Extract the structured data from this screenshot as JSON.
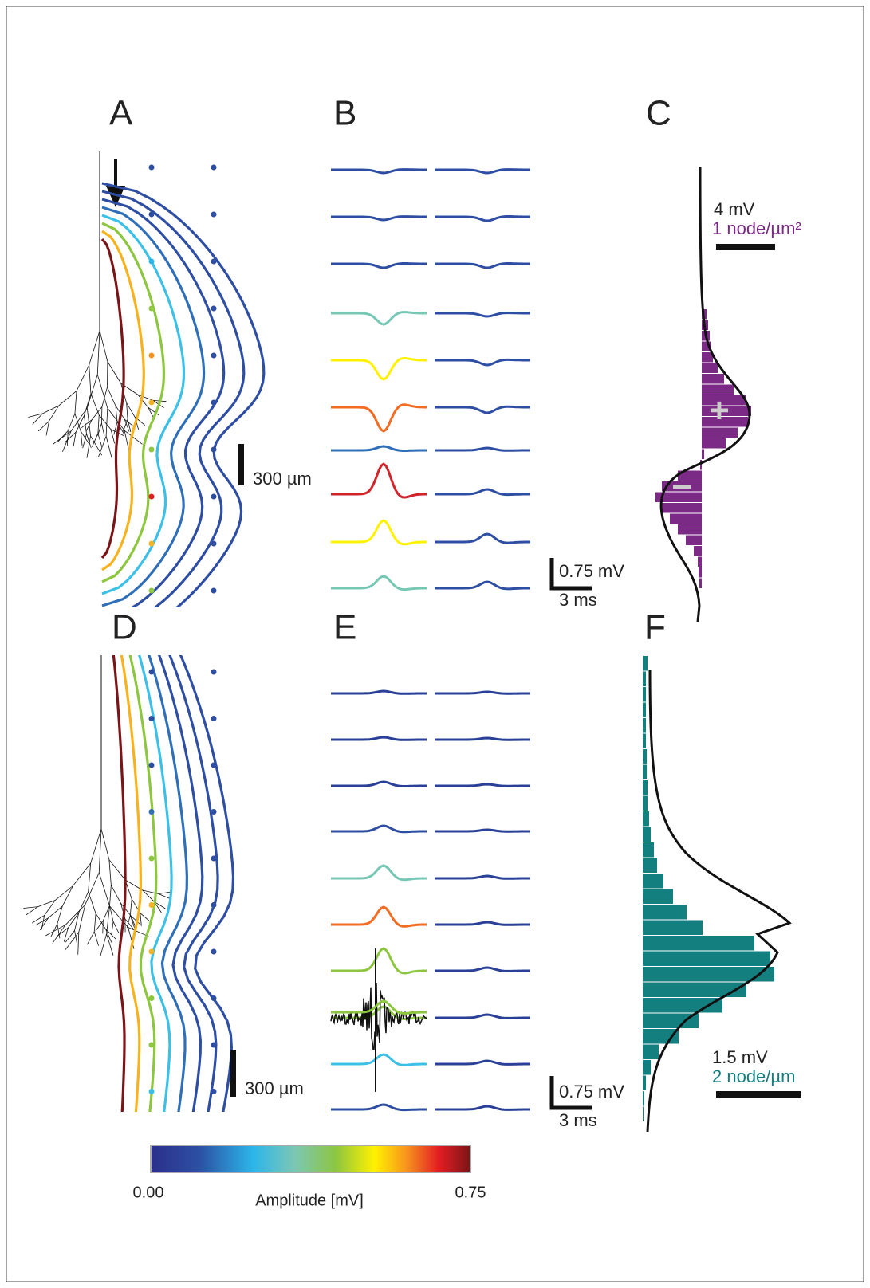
{
  "panels": [
    {
      "label": "A",
      "scale_length": "300 µm"
    },
    {
      "label": "B",
      "scale_voltage": "0.75 mV",
      "scale_time": "3 ms"
    },
    {
      "label": "C",
      "scale_voltage": "4 mV",
      "scale_density": "1 node/µm²",
      "positive_sign": "+",
      "negative_sign": "−"
    },
    {
      "label": "D",
      "scale_length": "300 µm"
    },
    {
      "label": "E",
      "scale_voltage": "0.75 mV",
      "scale_time": "3 ms"
    },
    {
      "label": "F",
      "scale_voltage": "1.5 mV",
      "scale_density": "2 node/µm"
    }
  ],
  "colorbar": {
    "min_label": "0.00",
    "max_label": "0.75",
    "title": "Amplitude [mV]"
  }
}
